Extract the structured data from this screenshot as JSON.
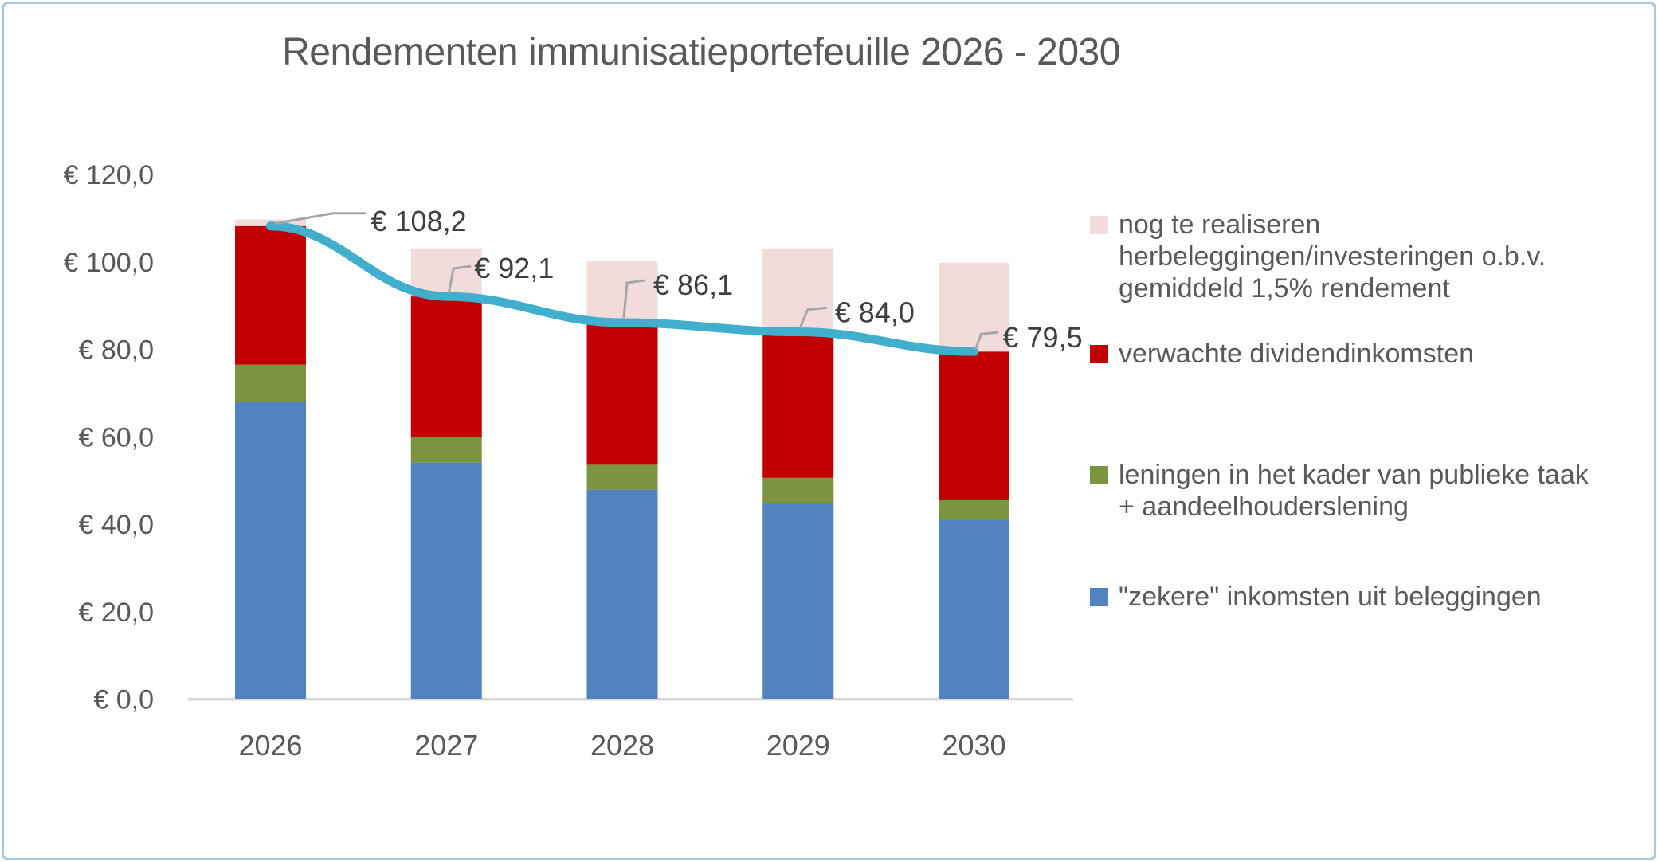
{
  "title": "Rendementen immunisatieportefeuille 2026 - 2030",
  "frame": {
    "border_color": "#A9C7E7",
    "background": "#FFFFFF"
  },
  "chart_data": {
    "type": "bar",
    "stacked": true,
    "title": "Rendementen immunisatieportefeuille 2026 - 2030",
    "categories": [
      "2026",
      "2027",
      "2028",
      "2029",
      "2030"
    ],
    "series": [
      {
        "name": "\"zekere\" inkomsten uit beleggingen",
        "color": "#5183C1",
        "values": [
          67.9,
          54.1,
          47.9,
          44.8,
          41.0
        ]
      },
      {
        "name": "leningen in het kader van publieke taak + aandeelhouderslening",
        "color": "#7A9440",
        "values": [
          8.6,
          5.9,
          5.7,
          5.8,
          4.5
        ]
      },
      {
        "name": "verwachte dividendinkomsten",
        "color": "#C00000",
        "values": [
          31.7,
          32.1,
          32.5,
          33.4,
          34.0
        ]
      },
      {
        "name": "nog te realiseren herbeleggingen/investeringen o.b.v. gemiddeld 1,5% rendement",
        "color": "#F2DCDB",
        "values": [
          1.5,
          11.0,
          14.1,
          19.1,
          20.3
        ]
      }
    ],
    "line_series": {
      "color": "#41AECE",
      "values": [
        108.2,
        92.1,
        86.1,
        84.0,
        79.5
      ],
      "labels": [
        "€ 108,2",
        "€ 92,1",
        "€ 86,1",
        "€ 84,0",
        "€ 79,5"
      ]
    },
    "xlabel": "",
    "ylabel": "",
    "ylim": [
      0,
      120
    ],
    "ytick_step": 20,
    "yticks": [
      "€ 120,0",
      "€ 100,0",
      "€ 80,0",
      "€ 60,0",
      "€ 40,0",
      "€ 20,0",
      "€ 0,0"
    ],
    "grid": false,
    "legend_position": "right",
    "colors": {
      "axis_line": "#D9D9D9",
      "tick_text": "#595959",
      "data_label_text": "#3F3F3F",
      "leader_line": "#A6A6A6"
    }
  },
  "legend": {
    "items": [
      {
        "label": "nog te realiseren\nherbeleggingen/investeringen o.b.v.\ngemiddeld 1,5% rendement",
        "color": "#F2DCDB"
      },
      {
        "label": "verwachte dividendinkomsten",
        "color": "#C00000"
      },
      {
        "label": "leningen in het kader van publieke taak\n+ aandeelhouderslening",
        "color": "#7A9440"
      },
      {
        "label": "\"zekere\" inkomsten uit beleggingen",
        "color": "#5183C1"
      }
    ]
  }
}
